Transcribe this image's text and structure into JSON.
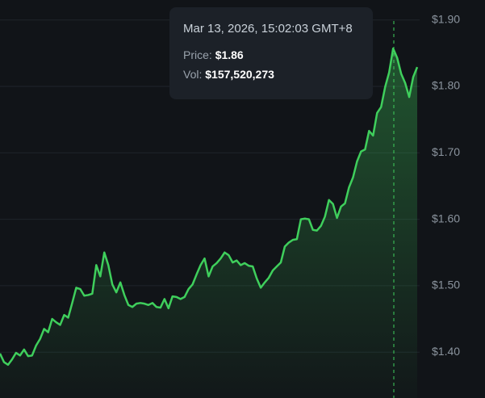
{
  "tooltip": {
    "date": "Mar 13, 2026, 15:02:03 GMT+8",
    "price_label": "Price:",
    "price": "$1.86",
    "volume_label": "Vol:",
    "volume": "$157,520,273"
  },
  "chart_data": {
    "type": "line",
    "color": "#3fcf5c",
    "values": [
      1.398,
      1.385,
      1.381,
      1.389,
      1.399,
      1.395,
      1.404,
      1.394,
      1.395,
      1.41,
      1.42,
      1.435,
      1.43,
      1.45,
      1.445,
      1.441,
      1.456,
      1.452,
      1.474,
      1.497,
      1.495,
      1.485,
      1.486,
      1.488,
      1.531,
      1.514,
      1.55,
      1.531,
      1.502,
      1.49,
      1.505,
      1.486,
      1.471,
      1.468,
      1.473,
      1.474,
      1.473,
      1.471,
      1.474,
      1.468,
      1.467,
      1.48,
      1.466,
      1.484,
      1.483,
      1.48,
      1.483,
      1.495,
      1.502,
      1.517,
      1.531,
      1.541,
      1.514,
      1.529,
      1.534,
      1.541,
      1.55,
      1.546,
      1.535,
      1.538,
      1.531,
      1.534,
      1.53,
      1.529,
      1.511,
      1.497,
      1.505,
      1.512,
      1.523,
      1.529,
      1.535,
      1.559,
      1.565,
      1.569,
      1.57,
      1.6,
      1.601,
      1.6,
      1.584,
      1.583,
      1.59,
      1.604,
      1.629,
      1.623,
      1.602,
      1.619,
      1.624,
      1.648,
      1.663,
      1.687,
      1.702,
      1.705,
      1.733,
      1.726,
      1.76,
      1.769,
      1.799,
      1.821,
      1.857,
      1.843,
      1.819,
      1.805,
      1.784,
      1.814,
      1.829
    ],
    "ylim": [
      1.331,
      1.93
    ],
    "yticks": [
      {
        "value": 1.4,
        "label": "$1.40"
      },
      {
        "value": 1.5,
        "label": "$1.50"
      },
      {
        "value": 1.6,
        "label": "$1.60"
      },
      {
        "value": 1.7,
        "label": "$1.70"
      },
      {
        "value": 1.8,
        "label": "$1.80"
      },
      {
        "value": 1.9,
        "label": "$1.90"
      }
    ],
    "grid": true
  }
}
